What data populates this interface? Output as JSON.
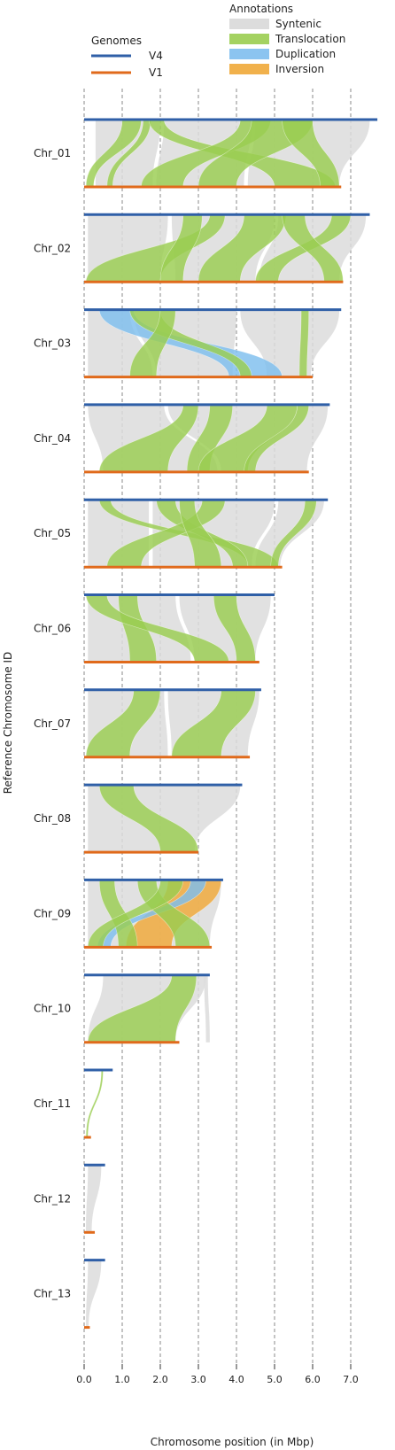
{
  "chart_data": {
    "type": "ribbon",
    "title": "",
    "xlabel": "Chromosome position (in Mbp)",
    "ylabel": "Reference Chromosome ID",
    "xlim": [
      0,
      7.7
    ],
    "x_ticks": [
      0.0,
      1.0,
      2.0,
      3.0,
      4.0,
      5.0,
      6.0,
      7.0
    ],
    "x_tick_labels": [
      "0.0",
      "1.0",
      "2.0",
      "3.0",
      "4.0",
      "5.0",
      "6.0",
      "7.0"
    ],
    "grid_vertical_dashed": true,
    "legend_genomes": {
      "title": "Genomes",
      "items": [
        {
          "label": "V4",
          "color": "#2f5fa7"
        },
        {
          "label": "V1",
          "color": "#e06a1b"
        }
      ]
    },
    "legend_annotations": {
      "title": "Annotations",
      "items": [
        {
          "label": "Syntenic",
          "color": "#dcdcdc"
        },
        {
          "label": "Translocation",
          "color": "#9acd50"
        },
        {
          "label": "Duplication",
          "color": "#7ebeee"
        },
        {
          "label": "Inversion",
          "color": "#f0a838"
        }
      ]
    },
    "colors": {
      "V4": "#2f5fa7",
      "V1": "#e06a1b",
      "Syntenic": "#dcdcdc",
      "Translocation": "#9acd50",
      "Duplication": "#7ebeee",
      "Inversion": "#f0a838"
    },
    "chromosomes": [
      {
        "id": "Chr_01",
        "v4_length": 7.7,
        "v1_length": 6.75,
        "ribbons": [
          {
            "type": "Syntenic",
            "ref": [
              0.3,
              2.0
            ],
            "query": [
              0.3,
              1.8
            ]
          },
          {
            "type": "Syntenic",
            "ref": [
              2.1,
              4.4
            ],
            "query": [
              1.9,
              4.2
            ]
          },
          {
            "type": "Syntenic",
            "ref": [
              4.5,
              7.5
            ],
            "query": [
              4.3,
              6.7
            ]
          },
          {
            "type": "Translocation",
            "ref": [
              1.0,
              1.5
            ],
            "query": [
              0.05,
              0.25
            ]
          },
          {
            "type": "Translocation",
            "ref": [
              1.55,
              1.75
            ],
            "query": [
              0.6,
              0.75
            ]
          },
          {
            "type": "Translocation",
            "ref": [
              1.7,
              2.1
            ],
            "query": [
              5.0,
              6.6
            ]
          },
          {
            "type": "Translocation",
            "ref": [
              4.1,
              4.9
            ],
            "query": [
              1.5,
              2.6
            ]
          },
          {
            "type": "Translocation",
            "ref": [
              4.4,
              6.0
            ],
            "query": [
              3.0,
              4.0
            ]
          },
          {
            "type": "Translocation",
            "ref": [
              5.2,
              6.0
            ],
            "query": [
              6.2,
              6.7
            ]
          }
        ]
      },
      {
        "id": "Chr_02",
        "v4_length": 7.5,
        "v1_length": 6.8,
        "ribbons": [
          {
            "type": "Syntenic",
            "ref": [
              0.1,
              2.2
            ],
            "query": [
              0.1,
              2.0
            ]
          },
          {
            "type": "Syntenic",
            "ref": [
              2.3,
              5.0
            ],
            "query": [
              2.4,
              4.5
            ]
          },
          {
            "type": "Syntenic",
            "ref": [
              5.1,
              7.4
            ],
            "query": [
              4.6,
              6.7
            ]
          },
          {
            "type": "Translocation",
            "ref": [
              3.3,
              3.7
            ],
            "query": [
              0.05,
              2.0
            ]
          },
          {
            "type": "Translocation",
            "ref": [
              2.6,
              3.1
            ],
            "query": [
              2.0,
              2.6
            ]
          },
          {
            "type": "Translocation",
            "ref": [
              4.2,
              5.3
            ],
            "query": [
              3.0,
              4.1
            ]
          },
          {
            "type": "Translocation",
            "ref": [
              6.5,
              7.0
            ],
            "query": [
              4.5,
              5.1
            ]
          },
          {
            "type": "Translocation",
            "ref": [
              5.2,
              5.8
            ],
            "query": [
              6.3,
              6.8
            ]
          }
        ]
      },
      {
        "id": "Chr_03",
        "v4_length": 6.75,
        "v1_length": 6.0,
        "ribbons": [
          {
            "type": "Syntenic",
            "ref": [
              0.1,
              1.2
            ],
            "query": [
              0.1,
              1.8
            ]
          },
          {
            "type": "Syntenic",
            "ref": [
              1.3,
              4.0
            ],
            "query": [
              1.9,
              3.9
            ]
          },
          {
            "type": "Syntenic",
            "ref": [
              4.1,
              6.7
            ],
            "query": [
              4.8,
              5.95
            ]
          },
          {
            "type": "Duplication",
            "ref": [
              0.4,
              1.3
            ],
            "query": [
              3.8,
              5.2
            ]
          },
          {
            "type": "Translocation",
            "ref": [
              1.2,
              2.0
            ],
            "query": [
              4.1,
              4.4
            ]
          },
          {
            "type": "Translocation",
            "ref": [
              2.0,
              2.4
            ],
            "query": [
              1.2,
              1.9
            ]
          },
          {
            "type": "Translocation",
            "ref": [
              5.7,
              5.9
            ],
            "query": [
              5.65,
              5.85
            ]
          }
        ]
      },
      {
        "id": "Chr_04",
        "v4_length": 6.45,
        "v1_length": 5.9,
        "ribbons": [
          {
            "type": "Syntenic",
            "ref": [
              0.1,
              2.1
            ],
            "query": [
              0.5,
              3.5
            ]
          },
          {
            "type": "Syntenic",
            "ref": [
              2.2,
              6.4
            ],
            "query": [
              3.6,
              5.85
            ]
          },
          {
            "type": "Translocation",
            "ref": [
              2.6,
              3.0
            ],
            "query": [
              0.4,
              2.2
            ]
          },
          {
            "type": "Translocation",
            "ref": [
              3.3,
              3.9
            ],
            "query": [
              2.7,
              3.3
            ]
          },
          {
            "type": "Translocation",
            "ref": [
              4.8,
              5.6
            ],
            "query": [
              3.0,
              4.3
            ]
          },
          {
            "type": "Translocation",
            "ref": [
              5.6,
              5.9
            ],
            "query": [
              4.2,
              4.5
            ]
          }
        ]
      },
      {
        "id": "Chr_05",
        "v4_length": 6.4,
        "v1_length": 5.2,
        "ribbons": [
          {
            "type": "Syntenic",
            "ref": [
              0.1,
              1.7
            ],
            "query": [
              0.1,
              1.7
            ]
          },
          {
            "type": "Syntenic",
            "ref": [
              1.8,
              5.0
            ],
            "query": [
              1.8,
              4.4
            ]
          },
          {
            "type": "Syntenic",
            "ref": [
              5.1,
              6.3
            ],
            "query": [
              4.5,
              5.15
            ]
          },
          {
            "type": "Translocation",
            "ref": [
              0.4,
              0.7
            ],
            "query": [
              4.3,
              5.1
            ]
          },
          {
            "type": "Translocation",
            "ref": [
              1.9,
              2.4
            ],
            "query": [
              3.9,
              4.3
            ]
          },
          {
            "type": "Translocation",
            "ref": [
              3.1,
              3.7
            ],
            "query": [
              0.6,
              1.5
            ]
          },
          {
            "type": "Translocation",
            "ref": [
              2.5,
              2.9
            ],
            "query": [
              2.9,
              3.6
            ]
          },
          {
            "type": "Translocation",
            "ref": [
              5.8,
              6.1
            ],
            "query": [
              4.9,
              5.1
            ]
          }
        ]
      },
      {
        "id": "Chr_06",
        "v4_length": 5.0,
        "v1_length": 4.6,
        "ribbons": [
          {
            "type": "Syntenic",
            "ref": [
              0.1,
              2.4
            ],
            "query": [
              0.1,
              2.8
            ]
          },
          {
            "type": "Syntenic",
            "ref": [
              2.5,
              4.9
            ],
            "query": [
              2.9,
              4.5
            ]
          },
          {
            "type": "Translocation",
            "ref": [
              0.9,
              1.4
            ],
            "query": [
              1.2,
              1.9
            ]
          },
          {
            "type": "Translocation",
            "ref": [
              0.05,
              0.6
            ],
            "query": [
              2.9,
              3.8
            ]
          },
          {
            "type": "Translocation",
            "ref": [
              3.4,
              4.0
            ],
            "query": [
              4.0,
              4.5
            ]
          }
        ]
      },
      {
        "id": "Chr_07",
        "v4_length": 4.65,
        "v1_length": 4.35,
        "ribbons": [
          {
            "type": "Syntenic",
            "ref": [
              0.1,
              2.1
            ],
            "query": [
              0.1,
              2.2
            ]
          },
          {
            "type": "Syntenic",
            "ref": [
              2.2,
              4.6
            ],
            "query": [
              2.3,
              4.3
            ]
          },
          {
            "type": "Translocation",
            "ref": [
              1.3,
              2.0
            ],
            "query": [
              0.05,
              1.2
            ]
          },
          {
            "type": "Translocation",
            "ref": [
              3.6,
              4.5
            ],
            "query": [
              2.3,
              3.6
            ]
          }
        ]
      },
      {
        "id": "Chr_08",
        "v4_length": 4.15,
        "v1_length": 3.0,
        "ribbons": [
          {
            "type": "Syntenic",
            "ref": [
              0.1,
              4.1
            ],
            "query": [
              0.1,
              2.9
            ]
          },
          {
            "type": "Translocation",
            "ref": [
              0.4,
              1.3
            ],
            "query": [
              2.0,
              3.0
            ]
          }
        ]
      },
      {
        "id": "Chr_09",
        "v4_length": 3.65,
        "v1_length": 3.35,
        "ribbons": [
          {
            "type": "Syntenic",
            "ref": [
              0.1,
              3.6
            ],
            "query": [
              0.1,
              3.3
            ]
          },
          {
            "type": "Inversion",
            "ref": [
              2.2,
              3.6
            ],
            "query": [
              1.1,
              2.3
            ]
          },
          {
            "type": "Duplication",
            "ref": [
              2.8,
              3.2
            ],
            "query": [
              0.35,
              0.7
            ]
          },
          {
            "type": "Translocation",
            "ref": [
              0.4,
              0.8
            ],
            "query": [
              0.9,
              1.4
            ]
          },
          {
            "type": "Translocation",
            "ref": [
              1.4,
              1.9
            ],
            "query": [
              2.4,
              3.3
            ]
          },
          {
            "type": "Translocation",
            "ref": [
              2.0,
              2.6
            ],
            "query": [
              0.1,
              0.5
            ]
          }
        ]
      },
      {
        "id": "Chr_10",
        "v4_length": 3.3,
        "v1_length": 2.5,
        "ribbons": [
          {
            "type": "Syntenic",
            "ref": [
              0.5,
              3.2
            ],
            "query": [
              0.1,
              2.4
            ]
          },
          {
            "type": "Syntenic",
            "ref": [
              3.15,
              3.25
            ],
            "query": [
              3.2,
              3.3
            ]
          },
          {
            "type": "Translocation",
            "ref": [
              2.3,
              2.95
            ],
            "query": [
              0.1,
              2.4
            ]
          }
        ]
      },
      {
        "id": "Chr_11",
        "v4_length": 0.75,
        "v1_length": 0.18,
        "ribbons": [
          {
            "type": "Translocation",
            "ref": [
              0.45,
              0.5
            ],
            "query": [
              0.05,
              0.1
            ]
          }
        ]
      },
      {
        "id": "Chr_12",
        "v4_length": 0.55,
        "v1_length": 0.28,
        "ribbons": [
          {
            "type": "Syntenic",
            "ref": [
              0.1,
              0.45
            ],
            "query": [
              0.05,
              0.2
            ]
          }
        ]
      },
      {
        "id": "Chr_13",
        "v4_length": 0.55,
        "v1_length": 0.15,
        "ribbons": [
          {
            "type": "Syntenic",
            "ref": [
              0.1,
              0.45
            ],
            "query": [
              0.05,
              0.12
            ]
          }
        ]
      }
    ]
  }
}
